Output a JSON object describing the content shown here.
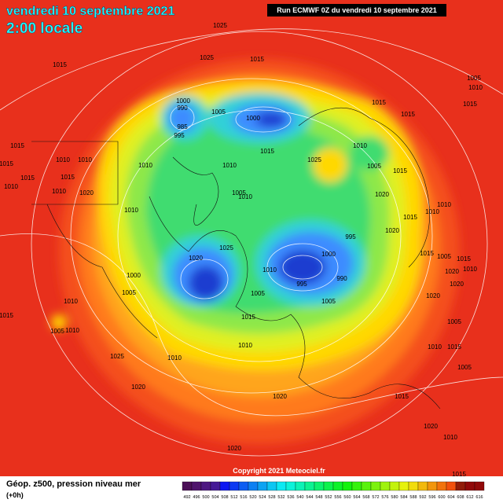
{
  "header": {
    "date": "vendredi 10 septembre 2021",
    "time": "2:00 locale",
    "run": "Run ECMWF 0Z du vendredi 10 septembre 2021"
  },
  "map": {
    "copyright": "Copyright 2021 Meteociel.fr",
    "isobar_labels": [
      "1025",
      "1025",
      "1015",
      "1015",
      "1005",
      "1010",
      "1015",
      "1000",
      "990",
      "1005",
      "1000",
      "1015",
      "1015",
      "985",
      "995",
      "1015",
      "1025",
      "1010",
      "1005",
      "1015",
      "1010",
      "1010",
      "1015",
      "1010",
      "1015",
      "1010",
      "1015",
      "1015",
      "1010",
      "1010",
      "1020",
      "1010",
      "1005",
      "1010",
      "1020",
      "1010",
      "1010",
      "1015",
      "995",
      "1020",
      "1025",
      "1020",
      "1000",
      "1015",
      "1005",
      "1015",
      "1010",
      "1010",
      "995",
      "990",
      "1000",
      "1020",
      "1005",
      "1005",
      "1020",
      "1020",
      "1010",
      "1005",
      "1015",
      "1015",
      "1005",
      "1010",
      "1005",
      "1010",
      "1010",
      "1025",
      "1010",
      "1015",
      "1005",
      "1020",
      "1020",
      "1015",
      "1020",
      "1020",
      "1010",
      "1015"
    ]
  },
  "footer": {
    "title": "Géop. z500, pression niveau mer",
    "step": "(+0h)",
    "scale": [
      "492",
      "496",
      "500",
      "504",
      "508",
      "512",
      "516",
      "520",
      "524",
      "528",
      "532",
      "536",
      "540",
      "544",
      "548",
      "552",
      "556",
      "560",
      "564",
      "568",
      "572",
      "576",
      "580",
      "584",
      "588",
      "592",
      "596",
      "600",
      "604",
      "608",
      "612",
      "616"
    ]
  }
}
